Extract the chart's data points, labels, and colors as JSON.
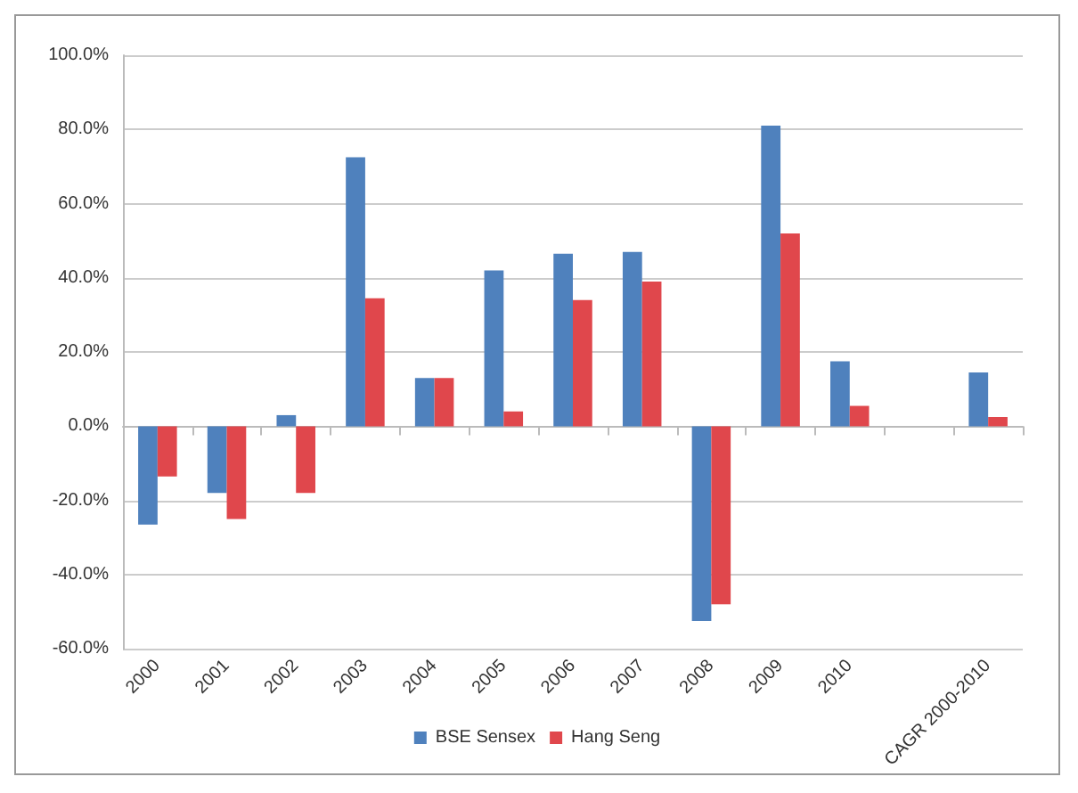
{
  "chart_data": {
    "type": "bar",
    "categories": [
      "2000",
      "2001",
      "2002",
      "2003",
      "2004",
      "2005",
      "2006",
      "2007",
      "2008",
      "2009",
      "2010",
      null,
      "CAGR 2000-2010"
    ],
    "series": [
      {
        "name": "BSE Sensex",
        "color": "#4f81bd",
        "values": [
          -26.5,
          -18,
          3,
          72.5,
          13,
          42,
          46.5,
          47,
          -52.5,
          81,
          17.5,
          null,
          14.5
        ]
      },
      {
        "name": "Hang Seng",
        "color": "#e0474c",
        "values": [
          -13.5,
          -25,
          -18,
          34.5,
          13,
          4,
          34,
          39,
          -48,
          52,
          5.5,
          null,
          2.5
        ]
      }
    ],
    "ylim": [
      -60,
      100
    ],
    "yticks": [
      {
        "value": -60,
        "label": "-60.0%"
      },
      {
        "value": -40,
        "label": "-40.0%"
      },
      {
        "value": -20,
        "label": "-20.0%"
      },
      {
        "value": 0,
        "label": "0.0%"
      },
      {
        "value": 20,
        "label": "20.0%"
      },
      {
        "value": 40,
        "label": "40.0%"
      },
      {
        "value": 60,
        "label": "60.0%"
      },
      {
        "value": 80,
        "label": "80.0%"
      },
      {
        "value": 100,
        "label": "100.0%"
      }
    ],
    "grid": "y",
    "legend": "bottom"
  }
}
